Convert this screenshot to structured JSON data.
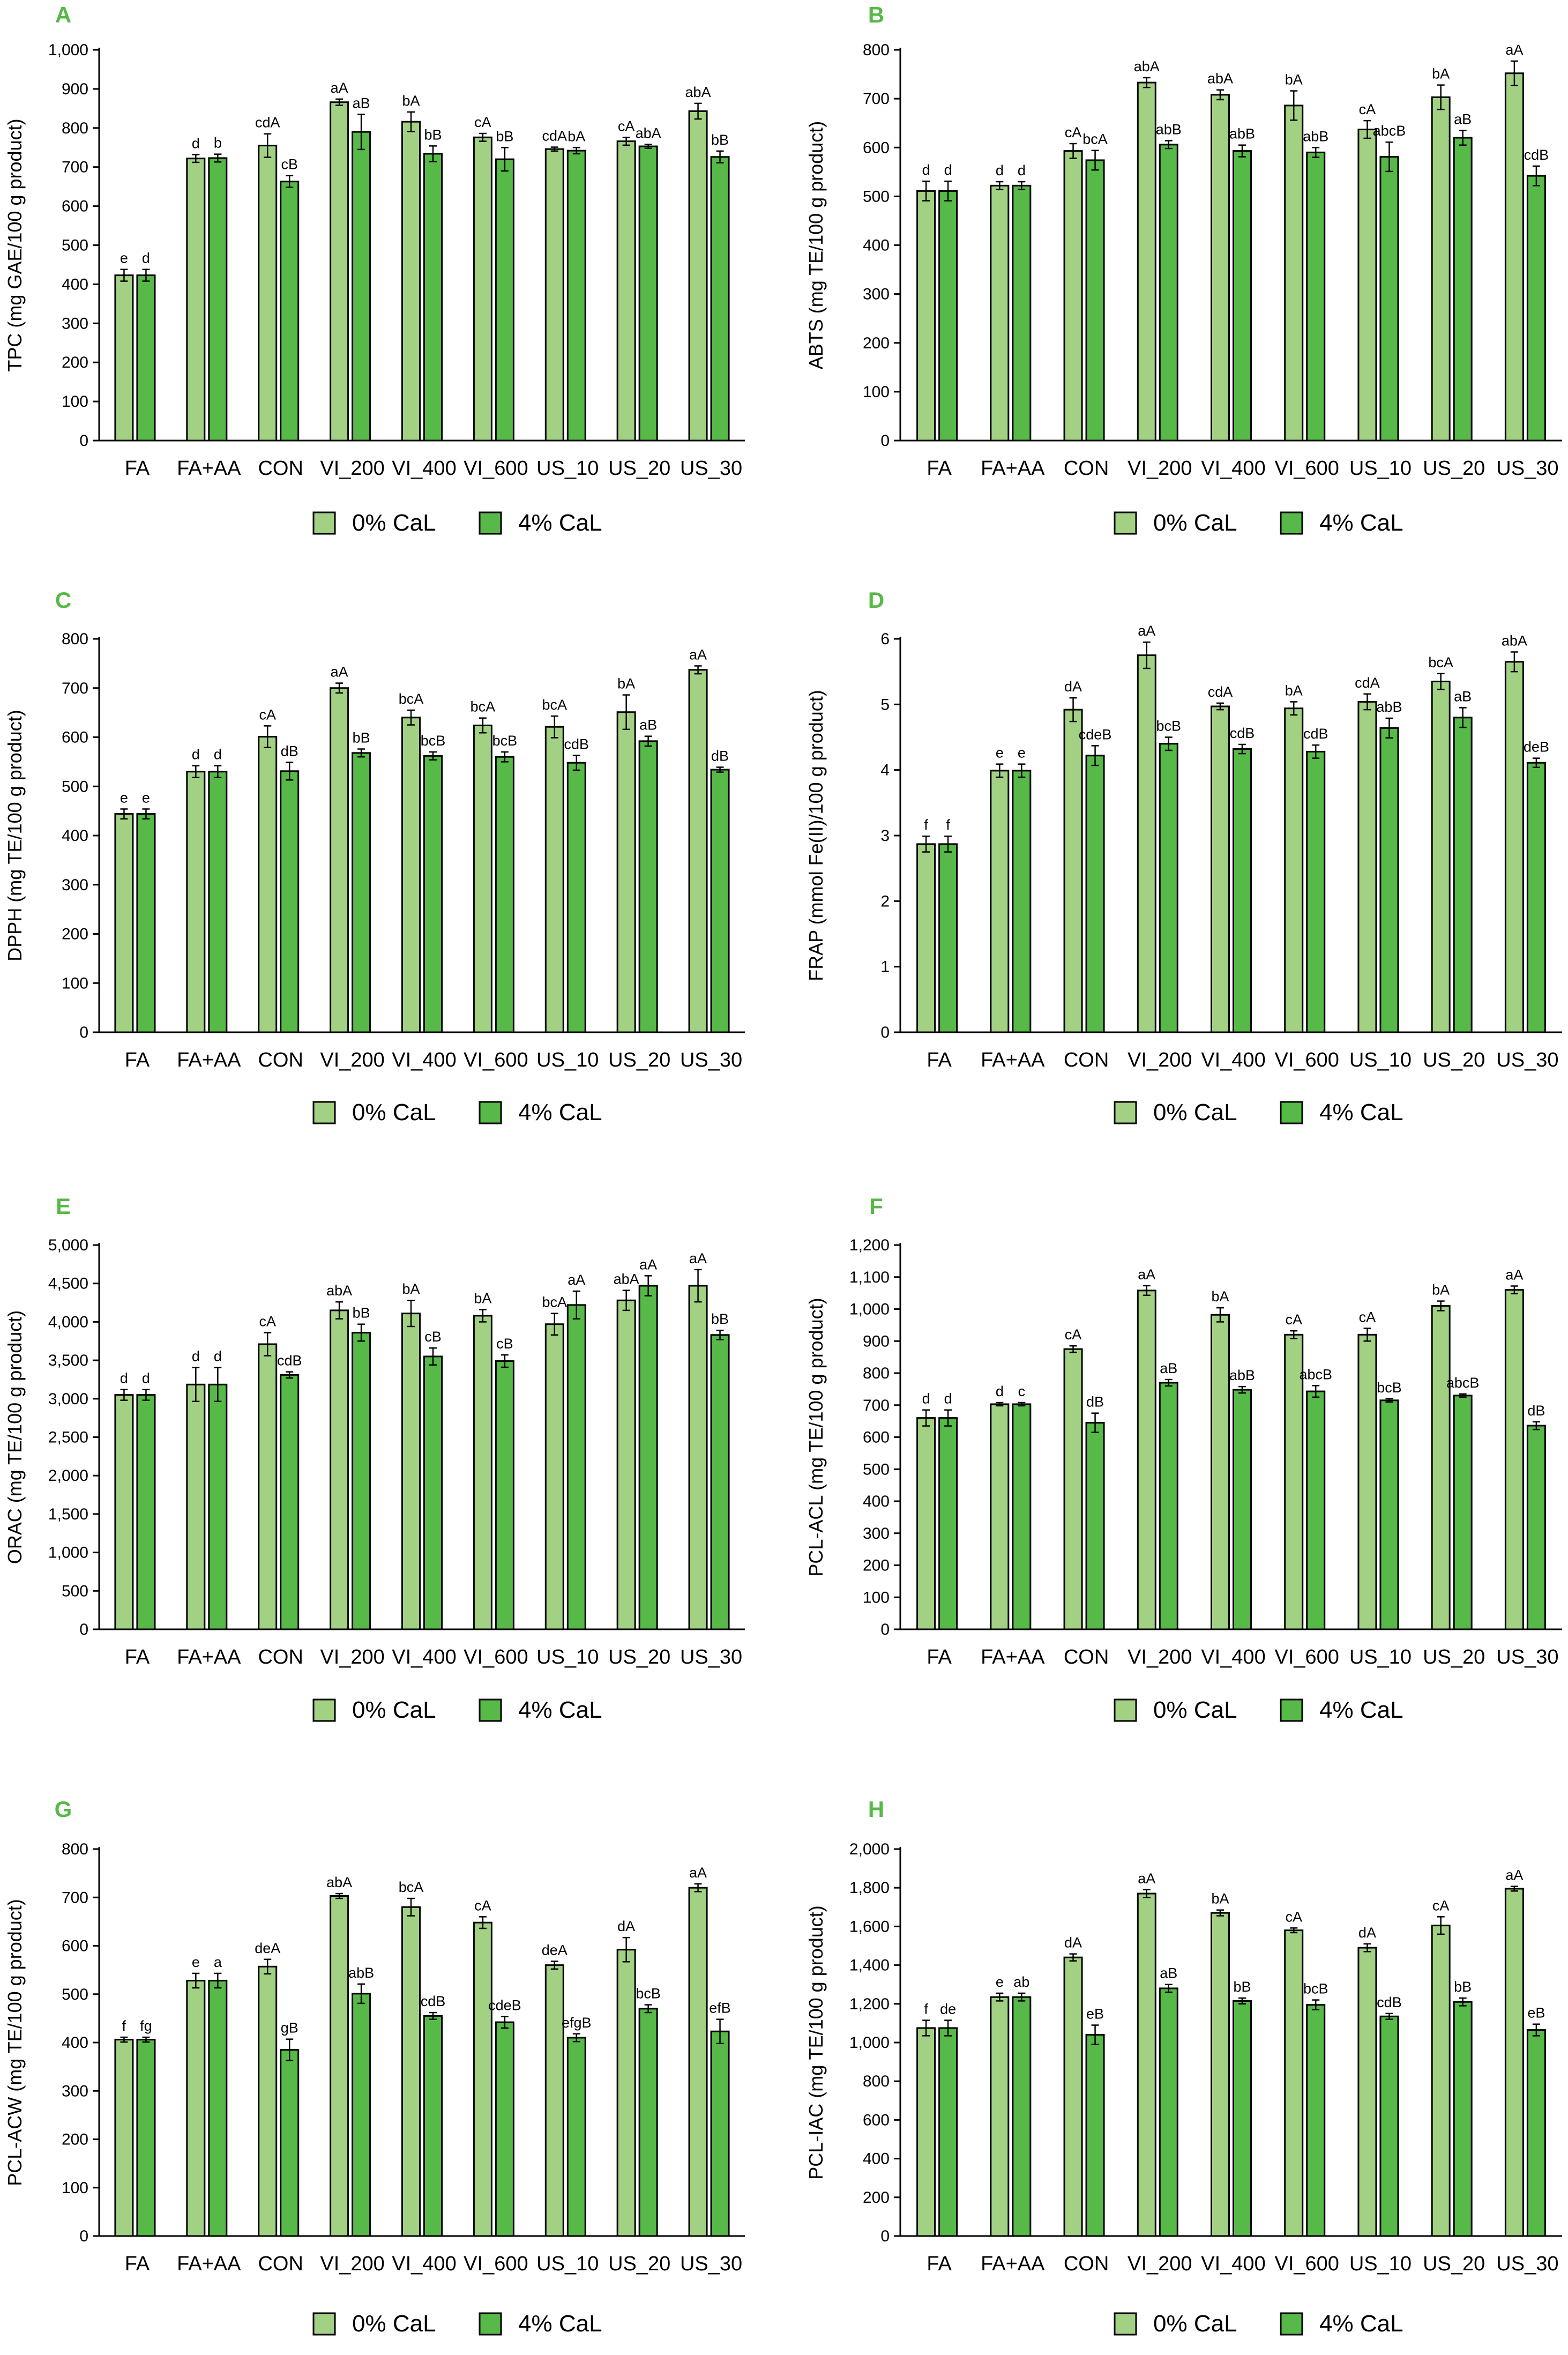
{
  "colors": {
    "series_0pct": "#a3d183",
    "series_4pct": "#57b947",
    "panel_letter": "#57b947",
    "axis": "#000000"
  },
  "legend": [
    {
      "label": "0% CaL",
      "color": "#a3d183"
    },
    {
      "label": "4% CaL",
      "color": "#57b947"
    }
  ],
  "chart_data": [
    {
      "panel": "A",
      "type": "bar",
      "ylabel": "TPC (mg GAE/100 g product)",
      "ylim": [
        0,
        1000
      ],
      "yticks": [
        0,
        100,
        200,
        300,
        400,
        500,
        600,
        700,
        800,
        900,
        1000
      ],
      "ytick_labels": [
        "0",
        "100",
        "200",
        "300",
        "400",
        "500",
        "600",
        "700",
        "800",
        "900",
        "1,000"
      ],
      "categories": [
        "FA",
        "FA+AA",
        "CON",
        "VI_200",
        "VI_400",
        "VI_600",
        "US_10",
        "US_20",
        "US_30"
      ],
      "series": [
        {
          "name": "0% CaL",
          "values": [
            423,
            722,
            755,
            866,
            816,
            776,
            746,
            766,
            843
          ],
          "errors": [
            15,
            10,
            30,
            8,
            25,
            10,
            5,
            10,
            20
          ],
          "labels": [
            "e",
            "d",
            "cdA",
            "aA",
            "bA",
            "cA",
            "cdA",
            "cA",
            "abA"
          ]
        },
        {
          "name": "4% CaL",
          "values": [
            423,
            723,
            663,
            790,
            734,
            720,
            742,
            753,
            726
          ],
          "errors": [
            15,
            10,
            15,
            45,
            20,
            30,
            8,
            5,
            15
          ],
          "labels": [
            "d",
            "b",
            "cB",
            "aB",
            "bB",
            "bB",
            "bA",
            "abA",
            "bB"
          ]
        }
      ]
    },
    {
      "panel": "B",
      "type": "bar",
      "ylabel": "ABTS (mg TE/100 g product)",
      "ylim": [
        0,
        800
      ],
      "yticks": [
        0,
        100,
        200,
        300,
        400,
        500,
        600,
        700,
        800
      ],
      "ytick_labels": [
        "0",
        "100",
        "200",
        "300",
        "400",
        "500",
        "600",
        "700",
        "800"
      ],
      "categories": [
        "FA",
        "FA+AA",
        "CON",
        "VI_200",
        "VI_400",
        "VI_600",
        "US_10",
        "US_20",
        "US_30"
      ],
      "series": [
        {
          "name": "0% CaL",
          "values": [
            511,
            522,
            593,
            733,
            708,
            686,
            637,
            703,
            752
          ],
          "errors": [
            20,
            8,
            15,
            10,
            10,
            30,
            18,
            25,
            25
          ],
          "labels": [
            "d",
            "d",
            "cA",
            "abA",
            "abA",
            "bA",
            "cA",
            "bA",
            "aA"
          ]
        },
        {
          "name": "4% CaL",
          "values": [
            511,
            522,
            574,
            606,
            593,
            590,
            581,
            620,
            542
          ],
          "errors": [
            20,
            8,
            20,
            8,
            12,
            10,
            30,
            15,
            20
          ],
          "labels": [
            "d",
            "d",
            "bcA",
            "abB",
            "abB",
            "abB",
            "abcB",
            "aB",
            "cdB"
          ]
        }
      ]
    },
    {
      "panel": "C",
      "type": "bar",
      "ylabel": "DPPH (mg TE/100 g product)",
      "ylim": [
        0,
        800
      ],
      "yticks": [
        0,
        100,
        200,
        300,
        400,
        500,
        600,
        700,
        800
      ],
      "ytick_labels": [
        "0",
        "100",
        "200",
        "300",
        "400",
        "500",
        "600",
        "700",
        "800"
      ],
      "categories": [
        "FA",
        "FA+AA",
        "CON",
        "VI_200",
        "VI_400",
        "VI_600",
        "US_10",
        "US_20",
        "US_30"
      ],
      "series": [
        {
          "name": "0% CaL",
          "values": [
            444,
            530,
            601,
            700,
            640,
            624,
            621,
            651,
            737
          ],
          "errors": [
            10,
            12,
            22,
            10,
            15,
            15,
            22,
            35,
            8
          ],
          "labels": [
            "e",
            "d",
            "cA",
            "aA",
            "bcA",
            "bcA",
            "bcA",
            "bA",
            "aA"
          ]
        },
        {
          "name": "4% CaL",
          "values": [
            444,
            530,
            531,
            568,
            562,
            560,
            548,
            592,
            534
          ],
          "errors": [
            10,
            12,
            18,
            8,
            8,
            10,
            15,
            10,
            5
          ],
          "labels": [
            "e",
            "d",
            "dB",
            "bB",
            "bcB",
            "bcB",
            "cdB",
            "aB",
            "dB"
          ]
        }
      ]
    },
    {
      "panel": "D",
      "type": "bar",
      "ylabel": "FRAP (mmol Fe(II)/100 g product)",
      "ylim": [
        0,
        6
      ],
      "yticks": [
        0,
        1,
        2,
        3,
        4,
        5,
        6
      ],
      "ytick_labels": [
        "0",
        "1",
        "2",
        "3",
        "4",
        "5",
        "6"
      ],
      "categories": [
        "FA",
        "FA+AA",
        "CON",
        "VI_200",
        "VI_400",
        "VI_600",
        "US_10",
        "US_20",
        "US_30"
      ],
      "series": [
        {
          "name": "0% CaL",
          "values": [
            2.87,
            3.99,
            4.92,
            5.75,
            4.97,
            4.94,
            5.04,
            5.35,
            5.65
          ],
          "errors": [
            0.12,
            0.1,
            0.18,
            0.2,
            0.05,
            0.1,
            0.12,
            0.12,
            0.15
          ],
          "labels": [
            "f",
            "e",
            "dA",
            "aA",
            "cdA",
            "bA",
            "cdA",
            "bcA",
            "abA"
          ]
        },
        {
          "name": "4% CaL",
          "values": [
            2.87,
            3.99,
            4.22,
            4.4,
            4.32,
            4.28,
            4.64,
            4.8,
            4.11
          ],
          "errors": [
            0.12,
            0.1,
            0.15,
            0.1,
            0.07,
            0.1,
            0.15,
            0.15,
            0.07
          ],
          "labels": [
            "f",
            "e",
            "cdeB",
            "bcB",
            "cdB",
            "cdB",
            "abB",
            "aB",
            "deB"
          ]
        }
      ]
    },
    {
      "panel": "E",
      "type": "bar",
      "ylabel": "ORAC (mg TE/100 g product)",
      "ylim": [
        0,
        5000
      ],
      "yticks": [
        0,
        500,
        1000,
        1500,
        2000,
        2500,
        3000,
        3500,
        4000,
        4500,
        5000
      ],
      "ytick_labels": [
        "0",
        "500",
        "1,000",
        "1,500",
        "2,000",
        "2,500",
        "3,000",
        "3,500",
        "4,000",
        "4,500",
        "5,000"
      ],
      "categories": [
        "FA",
        "FA+AA",
        "CON",
        "VI_200",
        "VI_400",
        "VI_600",
        "US_10",
        "US_20",
        "US_30"
      ],
      "series": [
        {
          "name": "0% CaL",
          "values": [
            3050,
            3185,
            3710,
            4150,
            4110,
            4080,
            3970,
            4280,
            4470
          ],
          "errors": [
            70,
            220,
            150,
            110,
            170,
            80,
            140,
            130,
            210
          ],
          "labels": [
            "d",
            "d",
            "cA",
            "abA",
            "bA",
            "bA",
            "bcA",
            "abA",
            "aA"
          ]
        },
        {
          "name": "4% CaL",
          "values": [
            3050,
            3185,
            3310,
            3860,
            3550,
            3490,
            4220,
            4470,
            3830
          ],
          "errors": [
            70,
            220,
            40,
            110,
            110,
            80,
            180,
            130,
            60
          ],
          "labels": [
            "d",
            "d",
            "cdB",
            "bB",
            "cB",
            "cB",
            "aA",
            "aA",
            "bB"
          ]
        }
      ]
    },
    {
      "panel": "F",
      "type": "bar",
      "ylabel": "PCL-ACL (mg TE/100 g product)",
      "ylim": [
        0,
        1200
      ],
      "yticks": [
        0,
        100,
        200,
        300,
        400,
        500,
        600,
        700,
        800,
        900,
        1000,
        1100,
        1200
      ],
      "ytick_labels": [
        "0",
        "100",
        "200",
        "300",
        "400",
        "500",
        "600",
        "700",
        "800",
        "900",
        "1,000",
        "1,100",
        "1,200"
      ],
      "categories": [
        "FA",
        "FA+AA",
        "CON",
        "VI_200",
        "VI_400",
        "VI_600",
        "US_10",
        "US_20",
        "US_30"
      ],
      "series": [
        {
          "name": "0% CaL",
          "values": [
            660,
            703,
            875,
            1058,
            982,
            920,
            920,
            1010,
            1060
          ],
          "errors": [
            25,
            5,
            10,
            15,
            22,
            12,
            20,
            15,
            12
          ],
          "labels": [
            "d",
            "d",
            "cA",
            "aA",
            "bA",
            "cA",
            "cA",
            "bA",
            "aA"
          ]
        },
        {
          "name": "4% CaL",
          "values": [
            660,
            703,
            645,
            770,
            748,
            743,
            715,
            730,
            636
          ],
          "errors": [
            25,
            5,
            30,
            10,
            10,
            18,
            5,
            5,
            12
          ],
          "labels": [
            "d",
            "c",
            "dB",
            "aB",
            "abB",
            "abcB",
            "bcB",
            "abcB",
            "dB"
          ]
        }
      ]
    },
    {
      "panel": "G",
      "type": "bar",
      "ylabel": "PCL-ACW (mg TE/100 g product)",
      "ylim": [
        0,
        800
      ],
      "yticks": [
        0,
        100,
        200,
        300,
        400,
        500,
        600,
        700,
        800
      ],
      "ytick_labels": [
        "0",
        "100",
        "200",
        "300",
        "400",
        "500",
        "600",
        "700",
        "800"
      ],
      "categories": [
        "FA",
        "FA+AA",
        "CON",
        "VI_200",
        "VI_400",
        "VI_600",
        "US_10",
        "US_20",
        "US_30"
      ],
      "series": [
        {
          "name": "0% CaL",
          "values": [
            406,
            528,
            557,
            703,
            680,
            648,
            560,
            592,
            720
          ],
          "errors": [
            5,
            15,
            15,
            5,
            18,
            12,
            8,
            25,
            8
          ],
          "labels": [
            "f",
            "e",
            "deA",
            "abA",
            "bcA",
            "cA",
            "deA",
            "dA",
            "aA"
          ]
        },
        {
          "name": "4% CaL",
          "values": [
            406,
            528,
            385,
            501,
            455,
            442,
            410,
            470,
            423
          ],
          "errors": [
            5,
            15,
            22,
            20,
            7,
            12,
            8,
            8,
            25
          ],
          "labels": [
            "fg",
            "a",
            "gB",
            "abB",
            "cdB",
            "cdeB",
            "efgB",
            "bcB",
            "efB"
          ]
        }
      ]
    },
    {
      "panel": "H",
      "type": "bar",
      "ylabel": "PCL-IAC (mg TE/100 g product)",
      "ylim": [
        0,
        2000
      ],
      "yticks": [
        0,
        200,
        400,
        600,
        800,
        1000,
        1200,
        1400,
        1600,
        1800,
        2000
      ],
      "ytick_labels": [
        "0",
        "200",
        "400",
        "600",
        "800",
        "1,000",
        "1,200",
        "1,400",
        "1,600",
        "1,800",
        "2,000"
      ],
      "categories": [
        "FA",
        "FA+AA",
        "CON",
        "VI_200",
        "VI_400",
        "VI_600",
        "US_10",
        "US_20",
        "US_30"
      ],
      "series": [
        {
          "name": "0% CaL",
          "values": [
            1075,
            1235,
            1440,
            1770,
            1670,
            1580,
            1490,
            1605,
            1795
          ],
          "errors": [
            40,
            20,
            18,
            20,
            15,
            12,
            20,
            45,
            12
          ],
          "labels": [
            "f",
            "e",
            "dA",
            "aA",
            "bA",
            "cA",
            "dA",
            "cA",
            "aA"
          ]
        },
        {
          "name": "4% CaL",
          "values": [
            1075,
            1235,
            1040,
            1280,
            1215,
            1195,
            1135,
            1210,
            1065
          ],
          "errors": [
            40,
            20,
            50,
            20,
            15,
            25,
            15,
            20,
            30
          ],
          "labels": [
            "de",
            "ab",
            "eB",
            "aB",
            "bB",
            "bcB",
            "cdB",
            "bB",
            "eB"
          ]
        }
      ]
    }
  ]
}
